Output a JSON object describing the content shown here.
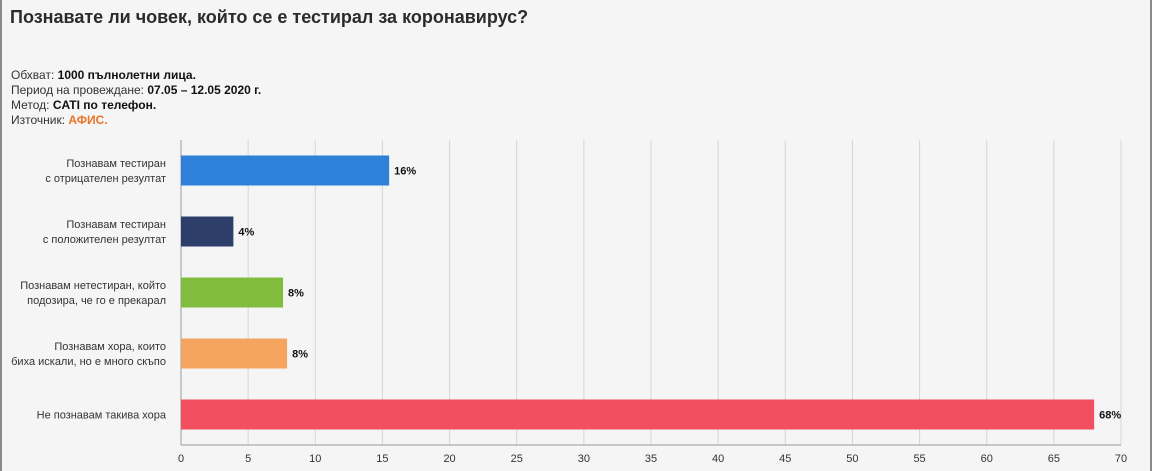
{
  "title": "Познавате ли човек, който се е тестирал за коронавирус?",
  "meta": {
    "sample_label": "Обхват:",
    "sample_value": "1000 пълнолетни лица.",
    "period_label": "Период на провеждане:",
    "period_value": "07.05 – 12.05 2020 г.",
    "method_label": "Метод:",
    "method_value": "CATI по телефон.",
    "source_label": "Източник:",
    "source_value": "АФИС.",
    "source_color": "#e8742a"
  },
  "chart_data": {
    "type": "bar",
    "orientation": "horizontal",
    "categories": [
      [
        "Познавам тестиран",
        "с отрицателен резултат"
      ],
      [
        "Познавам тестиран",
        "с положителен резултат"
      ],
      [
        "Познавам нетестиран, който",
        "подозира, че го е прекарал"
      ],
      [
        "Познавам хора, които",
        "биха искали, но е много скъпо"
      ],
      [
        "Не познавам такива хора"
      ]
    ],
    "values": [
      15.5,
      3.9,
      7.6,
      7.9,
      68.0
    ],
    "value_labels": [
      "16%",
      "4%",
      "8%",
      "8%",
      "68%"
    ],
    "colors": [
      "#2f80d8",
      "#2d3e6b",
      "#82bc3f",
      "#f5a460",
      "#f25060"
    ],
    "xlim": [
      0,
      70
    ],
    "xticks": [
      0,
      5,
      10,
      15,
      20,
      25,
      30,
      35,
      40,
      45,
      50,
      55,
      60,
      65,
      70
    ],
    "grid": true,
    "legend": "none"
  }
}
